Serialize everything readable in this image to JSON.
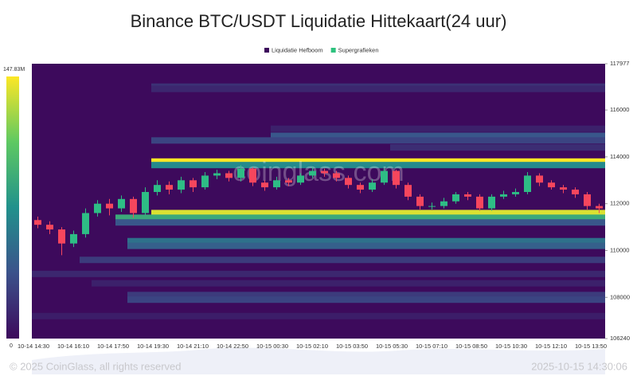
{
  "chart_data": {
    "type": "heatmap-candlestick",
    "title": "Binance BTC/USDT Liquidatie Hittekaart(24 uur)",
    "legend": [
      {
        "name": "Liquidatie Hefboom",
        "color": "#3d0a5c"
      },
      {
        "name": "Supergrafieken",
        "color": "#2ec27e"
      }
    ],
    "watermark": "coinglass.com",
    "footer_left": "© 2025 CoinGlass, all rights reserved",
    "footer_right": "2025-10-15 14:30:06",
    "ylim": [
      106240,
      117977
    ],
    "yticks": [
      106240,
      108000,
      110000,
      112000,
      114000,
      116000,
      117977
    ],
    "colorbar": {
      "colors": [
        "#3d0a5c",
        "#3b528b",
        "#21918c",
        "#5ec962",
        "#fde725"
      ],
      "range": [
        0,
        147.83
      ],
      "ticks": [
        0,
        {
          "value": 147.83,
          "label": "147.83M"
        }
      ]
    },
    "x_labels": [
      "10-14 14:30",
      "10-14 16:10",
      "10-14 17:50",
      "10-14 19:30",
      "10-14 21:10",
      "10-14 22:50",
      "10-15 00:30",
      "10-15 02:10",
      "10-15 03:50",
      "10-15 05:30",
      "10-15 07:10",
      "10-15 08:50",
      "10-15 10:30",
      "10-15 12:10",
      "10-15 13:50"
    ],
    "up_color": "#2ebd85",
    "down_color": "#f6465d",
    "open": [
      111300,
      111100,
      110900,
      110300,
      110700,
      111600,
      112000,
      111800,
      112200,
      111600,
      112500,
      112800,
      112600,
      113000,
      112700,
      113200,
      113300,
      113100,
      113500,
      112900,
      112700,
      113000,
      112900,
      113200,
      113400,
      113300,
      113100,
      112800,
      112600,
      112900,
      113400,
      112800,
      112300,
      111900,
      111900,
      112100,
      112400,
      112300,
      111800,
      112300,
      112400,
      112500,
      113200,
      112900,
      112700,
      112600,
      112400,
      111900
    ],
    "close": [
      111100,
      110900,
      110300,
      110700,
      111600,
      112000,
      111800,
      112200,
      111600,
      112500,
      112800,
      112600,
      113000,
      112700,
      113200,
      113300,
      113100,
      113500,
      112900,
      112700,
      113000,
      112900,
      113200,
      113400,
      113300,
      113100,
      112800,
      112600,
      112900,
      113400,
      112800,
      112300,
      111900,
      111900,
      112100,
      112400,
      112300,
      111800,
      112300,
      112400,
      112500,
      113200,
      112900,
      112700,
      112600,
      112400,
      111900,
      111800
    ],
    "high": [
      111450,
      111250,
      111000,
      110850,
      111800,
      112150,
      112200,
      112350,
      112300,
      112700,
      113000,
      112950,
      113150,
      113100,
      113350,
      113450,
      113400,
      113650,
      113550,
      113000,
      113150,
      113100,
      113300,
      113550,
      113500,
      113400,
      113200,
      112900,
      113050,
      113500,
      113450,
      112900,
      112400,
      112050,
      112250,
      112500,
      112500,
      112400,
      112400,
      112550,
      112650,
      113350,
      113300,
      113000,
      112800,
      112700,
      112500,
      112000
    ],
    "low": [
      110950,
      110700,
      109800,
      110150,
      110550,
      111450,
      111500,
      111650,
      111400,
      111500,
      112350,
      112400,
      112450,
      112500,
      112600,
      113050,
      112950,
      112950,
      112750,
      112550,
      112600,
      112750,
      112800,
      113100,
      113150,
      112950,
      112650,
      112450,
      112500,
      112800,
      112650,
      112150,
      111750,
      111750,
      111800,
      112000,
      112150,
      111700,
      111700,
      112200,
      112300,
      112400,
      112750,
      112600,
      112450,
      112250,
      111750,
      111600
    ],
    "levels": [
      {
        "price": 117000,
        "start": 10,
        "value": 20
      },
      {
        "price": 116900,
        "start": 10,
        "value": 15
      },
      {
        "price": 115200,
        "start": 20,
        "value": 12
      },
      {
        "price": 114900,
        "start": 20,
        "value": 40
      },
      {
        "price": 114700,
        "start": 10,
        "value": 30
      },
      {
        "price": 114400,
        "start": 30,
        "value": 18
      },
      {
        "price": 113800,
        "start": 10,
        "value": 147.83
      },
      {
        "price": 113650,
        "start": 10,
        "value": 70
      },
      {
        "price": 111600,
        "start": 10,
        "value": 140
      },
      {
        "price": 111400,
        "start": 7,
        "value": 90
      },
      {
        "price": 111200,
        "start": 7,
        "value": 40
      },
      {
        "price": 110400,
        "start": 8,
        "value": 55
      },
      {
        "price": 110200,
        "start": 8,
        "value": 45
      },
      {
        "price": 109600,
        "start": 4,
        "value": 25
      },
      {
        "price": 109000,
        "start": 0,
        "value": 15
      },
      {
        "price": 108600,
        "start": 5,
        "value": 12
      },
      {
        "price": 108100,
        "start": 8,
        "value": 25
      },
      {
        "price": 107900,
        "start": 8,
        "value": 30
      },
      {
        "price": 107200,
        "start": 0,
        "value": 10
      }
    ]
  }
}
